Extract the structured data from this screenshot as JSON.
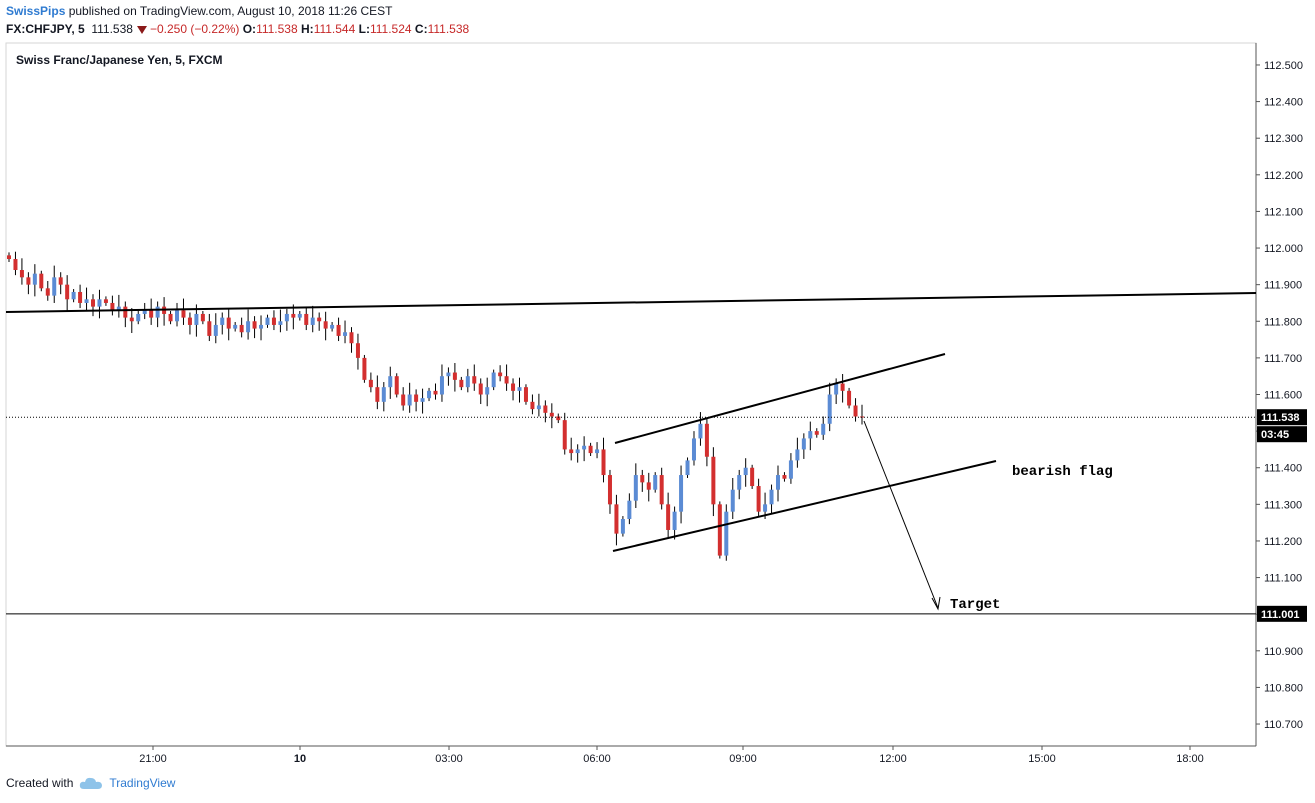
{
  "header": {
    "author": "SwissPips",
    "published": " published on TradingView.com, August 10, 2018 11:26 CEST",
    "symbol": "FX:CHFJPY, 5",
    "last": "111.538",
    "change": "−0.250 (−0.22%)",
    "o_label": "O:",
    "o_value": "111.538",
    "h_label": "H:",
    "h_value": "111.544",
    "l_label": "L:",
    "l_value": "111.524",
    "c_label": "C:",
    "c_value": "111.538"
  },
  "footer": {
    "created_with": "Created with",
    "brand": "TradingView"
  },
  "chart_data": {
    "type": "candlestick",
    "title": "Swiss Franc/Japanese Yen, 5, FXCM",
    "ylim": [
      110.64,
      112.56
    ],
    "y_ticks": [
      "112.500",
      "112.400",
      "112.300",
      "112.200",
      "112.100",
      "112.000",
      "111.900",
      "111.800",
      "111.700",
      "111.600",
      "111.500",
      "111.400",
      "111.300",
      "111.200",
      "111.100",
      "111.000",
      "110.900",
      "110.800",
      "110.700"
    ],
    "x_ticks": [
      "21:00",
      "10",
      "03:00",
      "06:00",
      "09:00",
      "12:00",
      "15:00",
      "18:00"
    ],
    "price_labels": {
      "last_price": "111.538",
      "countdown": "03:45",
      "target_price": "111.001"
    },
    "annotations": {
      "flag_label": "bearish flag",
      "target_label": "Target"
    },
    "colors": {
      "up": "#5b8bd4",
      "down": "#d32f2f",
      "line": "#000000"
    },
    "close_series": [
      111.97,
      111.94,
      111.92,
      111.9,
      111.93,
      111.89,
      111.87,
      111.92,
      111.9,
      111.86,
      111.88,
      111.85,
      111.86,
      111.84,
      111.86,
      111.85,
      111.83,
      111.84,
      111.81,
      111.8,
      111.82,
      111.83,
      111.81,
      111.84,
      111.82,
      111.8,
      111.83,
      111.81,
      111.79,
      111.82,
      111.8,
      111.76,
      111.79,
      111.81,
      111.78,
      111.79,
      111.77,
      111.8,
      111.78,
      111.79,
      111.81,
      111.79,
      111.8,
      111.82,
      111.81,
      111.82,
      111.79,
      111.81,
      111.8,
      111.78,
      111.79,
      111.76,
      111.77,
      111.74,
      111.7,
      111.64,
      111.62,
      111.58,
      111.62,
      111.65,
      111.6,
      111.57,
      111.6,
      111.58,
      111.59,
      111.61,
      111.6,
      111.65,
      111.66,
      111.64,
      111.62,
      111.65,
      111.63,
      111.6,
      111.62,
      111.66,
      111.65,
      111.63,
      111.61,
      111.62,
      111.58,
      111.56,
      111.57,
      111.55,
      111.54,
      111.53,
      111.45,
      111.44,
      111.45,
      111.46,
      111.44,
      111.45,
      111.38,
      111.3,
      111.22,
      111.26,
      111.31,
      111.38,
      111.36,
      111.34,
      111.38,
      111.3,
      111.23,
      111.28,
      111.38,
      111.42,
      111.48,
      111.52,
      111.43,
      111.3,
      111.16,
      111.28,
      111.34,
      111.38,
      111.4,
      111.35,
      111.28,
      111.3,
      111.34,
      111.38,
      111.37,
      111.42,
      111.45,
      111.48,
      111.5,
      111.49,
      111.52,
      111.6,
      111.63,
      111.61,
      111.57,
      111.54,
      111.538
    ]
  }
}
